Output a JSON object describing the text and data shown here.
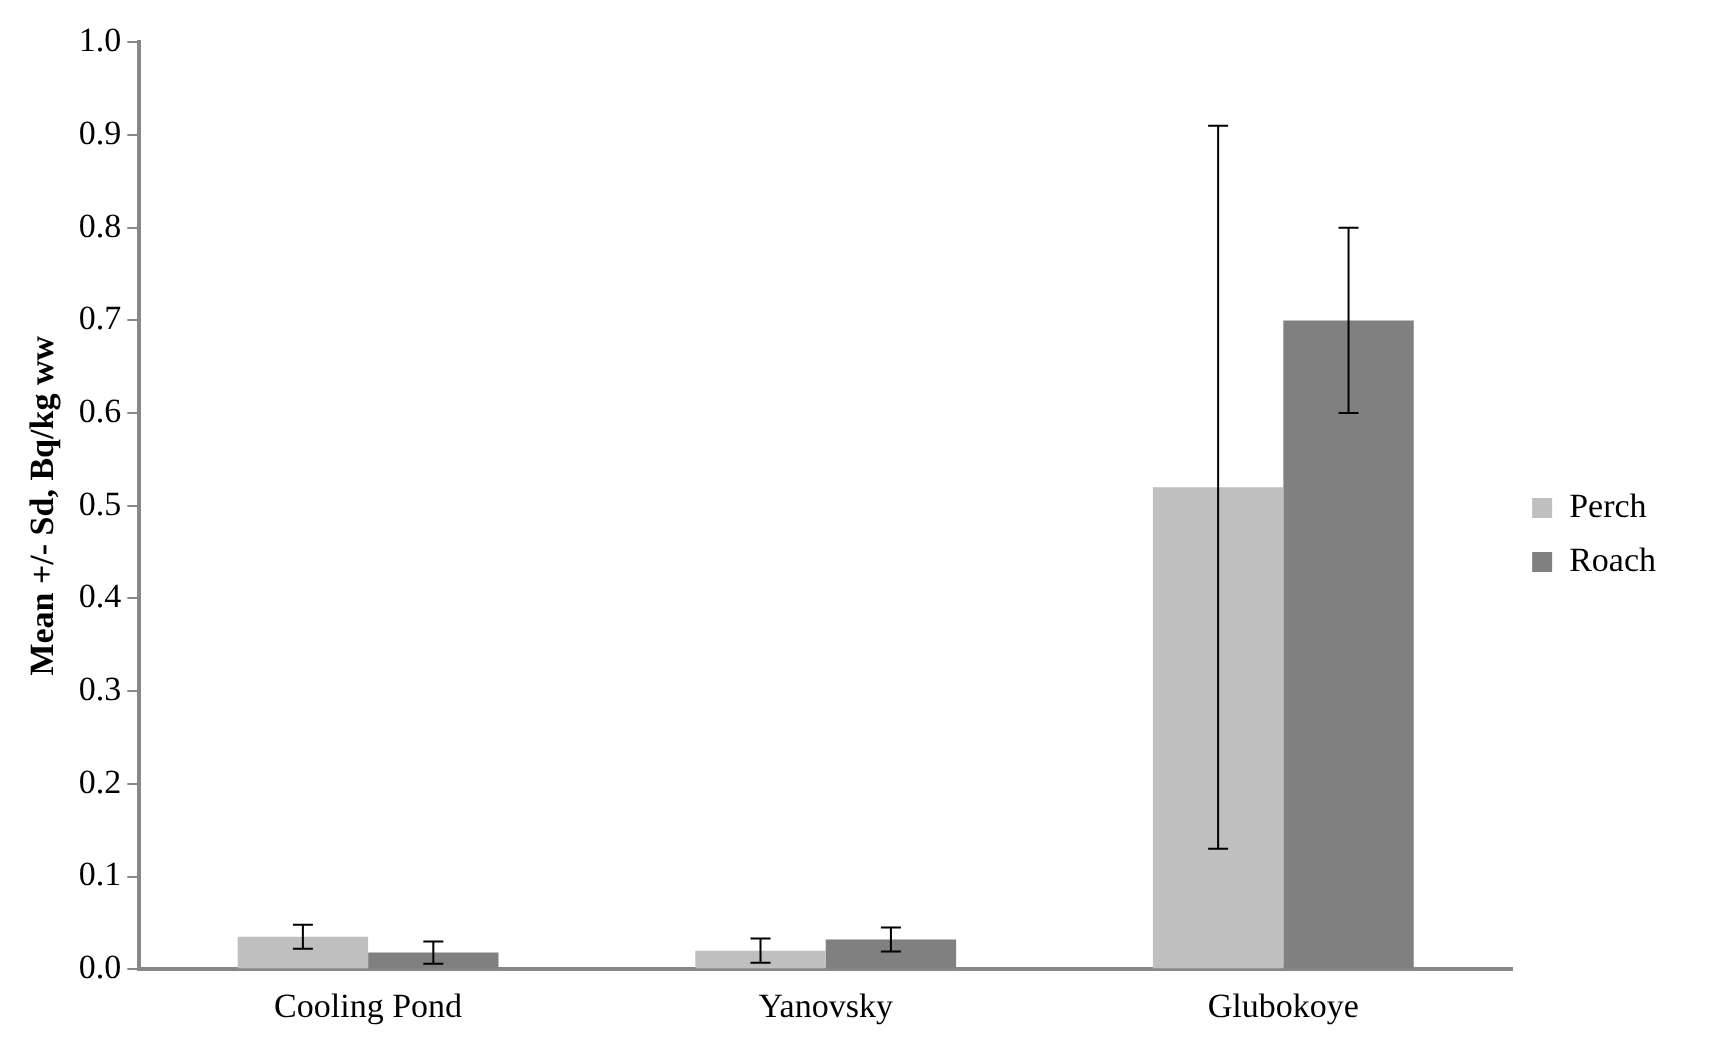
{
  "chart_data": {
    "type": "bar",
    "ylabel": "Mean +/- Sd, Bq/kg ww",
    "categories": [
      "Cooling Pond",
      "Yanovsky",
      "Glubokoye"
    ],
    "series": [
      {
        "name": "Perch",
        "color": "#bfbfbf",
        "values": [
          0.035,
          0.02,
          0.52
        ],
        "errors": [
          0.013,
          0.013,
          0.39
        ]
      },
      {
        "name": "Roach",
        "color": "#808080",
        "values": [
          0.018,
          0.032,
          0.7
        ],
        "errors": [
          0.012,
          0.013,
          0.1
        ]
      }
    ],
    "ylim": [
      0,
      1
    ],
    "yticks": [
      {
        "value": 0,
        "label": "0.0"
      },
      {
        "value": 0.1,
        "label": "0.1"
      },
      {
        "value": 0.2,
        "label": "0.2"
      },
      {
        "value": 0.3,
        "label": "0.3"
      },
      {
        "value": 0.4,
        "label": "0.4"
      },
      {
        "value": 0.5,
        "label": "0.5"
      },
      {
        "value": 0.6,
        "label": "0.6"
      },
      {
        "value": 0.7,
        "label": "0.7"
      },
      {
        "value": 0.8,
        "label": "0.8"
      },
      {
        "value": 0.9,
        "label": "0.9"
      },
      {
        "value": 1,
        "label": "1.0"
      }
    ],
    "grid": false,
    "legend": "right"
  }
}
